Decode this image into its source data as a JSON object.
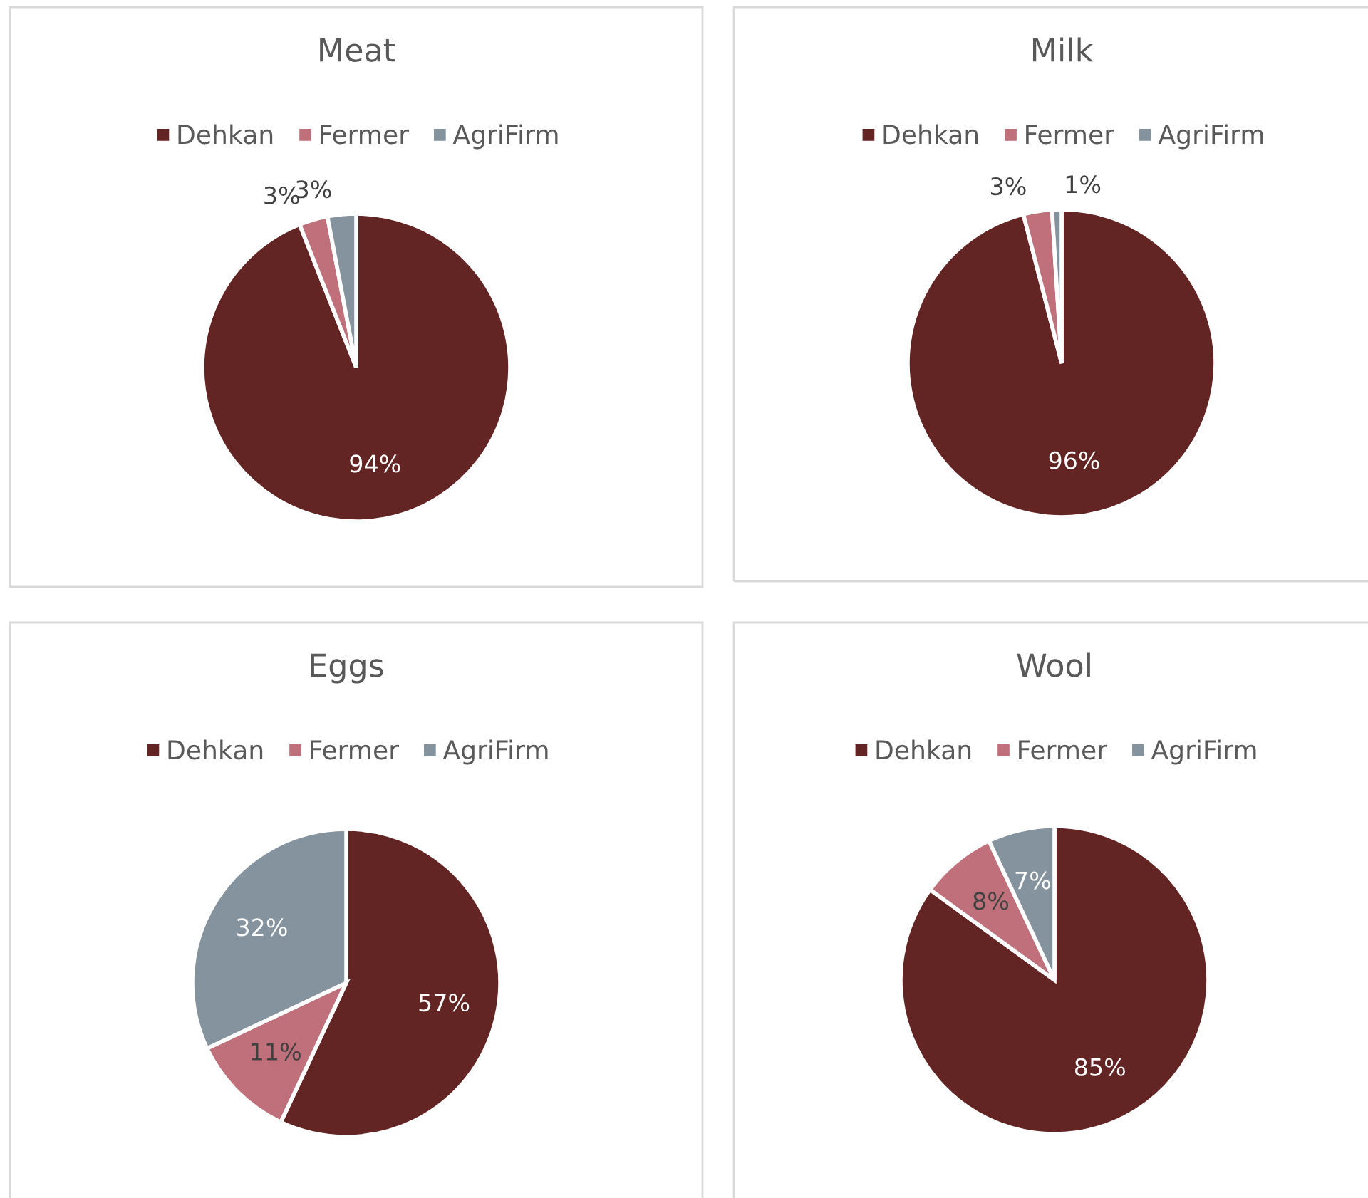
{
  "chart_data": [
    {
      "type": "pie",
      "title": "Meat",
      "categories": [
        "Dehkan",
        "Fermer",
        "AgriFirm"
      ],
      "values": [
        94,
        3,
        3
      ],
      "colors": [
        "#632523",
        "#c0707a",
        "#84939e"
      ],
      "value_labels": [
        "94%",
        "3%",
        "3%"
      ],
      "legend": "top"
    },
    {
      "type": "pie",
      "title": "Milk",
      "categories": [
        "Dehkan",
        "Fermer",
        "AgriFirm"
      ],
      "values": [
        96,
        3,
        1
      ],
      "colors": [
        "#632523",
        "#c0707a",
        "#84939e"
      ],
      "value_labels": [
        "96%",
        "3%",
        "1%"
      ],
      "legend": "top"
    },
    {
      "type": "pie",
      "title": "Eggs",
      "categories": [
        "Dehkan",
        "Fermer",
        "AgriFirm"
      ],
      "values": [
        57,
        11,
        32
      ],
      "colors": [
        "#632523",
        "#c0707a",
        "#84939e"
      ],
      "value_labels": [
        "57%",
        "11%",
        "32%"
      ],
      "legend": "top"
    },
    {
      "type": "pie",
      "title": "Wool",
      "categories": [
        "Dehkan",
        "Fermer",
        "AgriFirm"
      ],
      "values": [
        85,
        8,
        7
      ],
      "colors": [
        "#632523",
        "#c0707a",
        "#84939e"
      ],
      "value_labels": [
        "85%",
        "8%",
        "7%"
      ],
      "legend": "top"
    }
  ]
}
